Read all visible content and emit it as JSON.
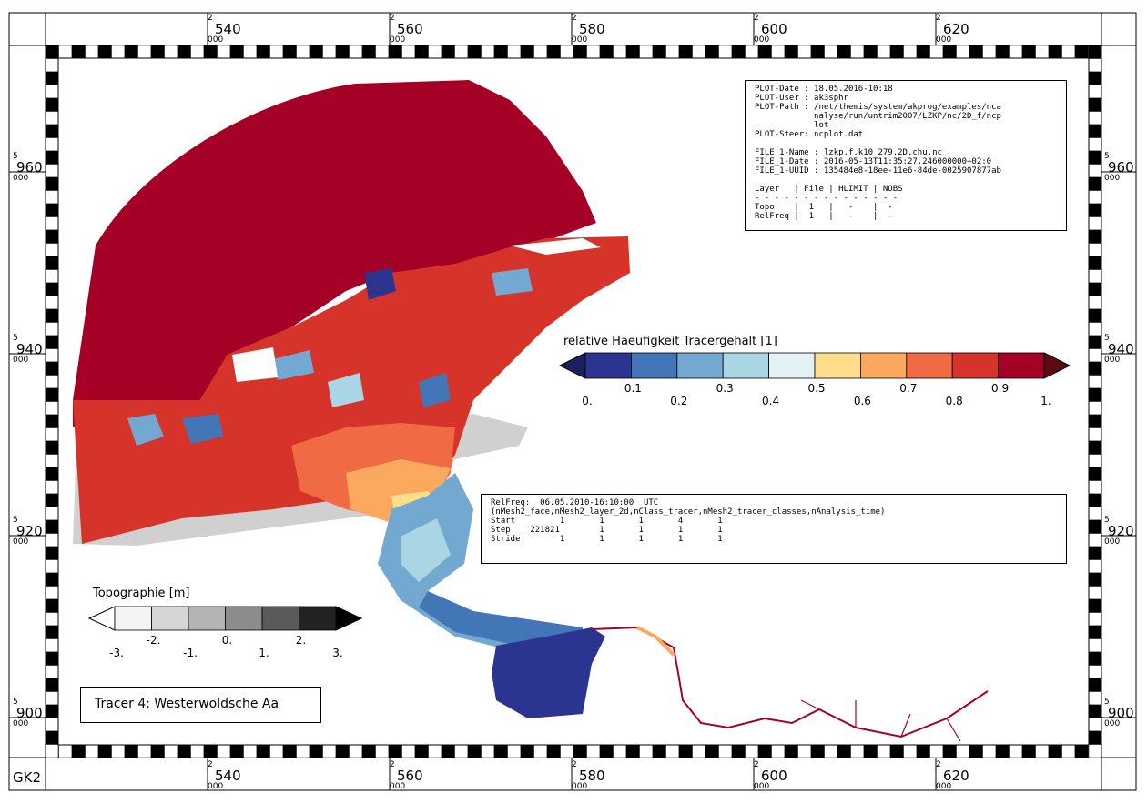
{
  "frame": {
    "corner_label": "GK2",
    "x_ticks": [
      {
        "prefix": "2",
        "value": "540",
        "suffix": "000"
      },
      {
        "prefix": "2",
        "value": "560",
        "suffix": "000"
      },
      {
        "prefix": "2",
        "value": "580",
        "suffix": "000"
      },
      {
        "prefix": "2",
        "value": "600",
        "suffix": "000"
      },
      {
        "prefix": "2",
        "value": "620",
        "suffix": "000"
      }
    ],
    "y_ticks": [
      {
        "prefix": "5",
        "value": "960",
        "suffix": "000"
      },
      {
        "prefix": "5",
        "value": "940",
        "suffix": "000"
      },
      {
        "prefix": "5",
        "value": "920",
        "suffix": "000"
      },
      {
        "prefix": "5",
        "value": "900",
        "suffix": "000"
      }
    ]
  },
  "plot_info": {
    "lines": [
      "PLOT-Date : 18.05.2016-10:18",
      "PLOT-User : ak3sphr",
      "PLOT-Path : /net/themis/system/akprog/examples/nca",
      "            nalyse/run/untrim2007/LZKP/nc/2D_f/ncp",
      "            lot",
      "PLOT-Steer: ncplot.dat",
      "",
      "FILE_1-Name : lzkp.f.k10_279.2D.chu.nc",
      "FILE_1-Date : 2016-05-13T11:35:27.246000000+02:0",
      "FILE_1-UUID : 135484e8-18ee-11e6-84de-0025907877ab",
      "",
      "Layer   | File | HLIMIT | NOBS",
      "- - - - - - - - - - - - - - -",
      "Topo    |  1   |   -    |  -",
      "RelFreq |  1   |   -    |  -"
    ]
  },
  "tracer_legend": {
    "title": "relative Haeufigkeit Tracergehalt [1]",
    "colors": [
      "#2b3590",
      "#4376b6",
      "#73a9d0",
      "#a9d5e5",
      "#e3f2f4",
      "#fede8b",
      "#fba95e",
      "#f06b43",
      "#d6332a",
      "#a50026"
    ],
    "under_color": "#1a1f5e",
    "over_color": "#5a0a10",
    "labels_bottom": [
      "0.",
      "0.2",
      "0.4",
      "0.6",
      "0.8",
      "1."
    ],
    "labels_top": [
      "0.1",
      "0.3",
      "0.5",
      "0.7",
      "0.9"
    ]
  },
  "relfreq_info": {
    "lines": [
      "RelFreq:  06.05.2010-16:10:00  UTC",
      "(nMesh2_face,nMesh2_layer_2d,nClass_tracer,nMesh2_tracer_classes,nAnalysis_time)",
      "Start         1       1       1       4       1",
      "Step    221821        1       1       1       1",
      "Stride        1       1       1       1       1"
    ]
  },
  "topo_legend": {
    "title": "Topographie [m]",
    "colors": [
      "#f4f4f4",
      "#d6d6d6",
      "#b4b4b4",
      "#8c8c8c",
      "#5a5a5a",
      "#222222"
    ],
    "under_color": "#ffffff",
    "over_color": "#000000",
    "labels_bottom": [
      "-3.",
      "-1.",
      "1.",
      "3."
    ],
    "labels_top": [
      "-2.",
      "0.",
      "2."
    ]
  },
  "tracer_label": "Tracer 4: Westerwoldsche Aa",
  "map_colors": {
    "high": "#a50026",
    "red": "#d6332a",
    "orange": "#f06b43",
    "lightorange": "#fba95e",
    "yellow": "#fede8b",
    "paleblue": "#a9d5e5",
    "midblue": "#73a9d0",
    "blue": "#4376b6",
    "deepblue": "#2b3590",
    "gray": "#d0d0d0"
  }
}
